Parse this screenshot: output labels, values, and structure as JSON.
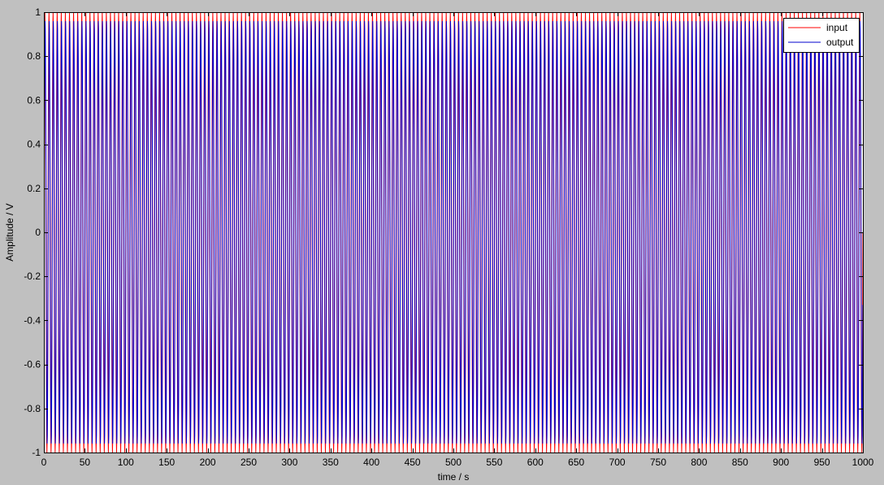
{
  "chart_data": {
    "type": "line",
    "title": "",
    "xlabel": "time / s",
    "ylabel": "Amplitude / V",
    "xlim": [
      0,
      1000
    ],
    "ylim": [
      -1,
      1
    ],
    "xticks": [
      "0",
      "50",
      "100",
      "150",
      "200",
      "250",
      "300",
      "350",
      "400",
      "450",
      "500",
      "550",
      "600",
      "650",
      "700",
      "750",
      "800",
      "850",
      "900",
      "950",
      "1000"
    ],
    "yticks": [
      "1",
      "0.8",
      "0.6",
      "0.4",
      "0.2",
      "0",
      "-0.2",
      "-0.4",
      "-0.6",
      "-0.8",
      "-1"
    ],
    "grid": false,
    "legend_position": "top-right",
    "series": [
      {
        "name": "input",
        "color": "#ff0000",
        "description": "sine wave, amplitude 1, approx. 0.2 Hz (period ~5 s)",
        "amplitude": 1.0,
        "frequency_hz": 0.2,
        "phase": 0
      },
      {
        "name": "output",
        "color": "#0000cc",
        "description": "sine wave, amplitude ~0.96, approx. 0.2 Hz, slight lag",
        "amplitude": 0.96,
        "frequency_hz": 0.2,
        "phase": -0.35
      }
    ]
  }
}
